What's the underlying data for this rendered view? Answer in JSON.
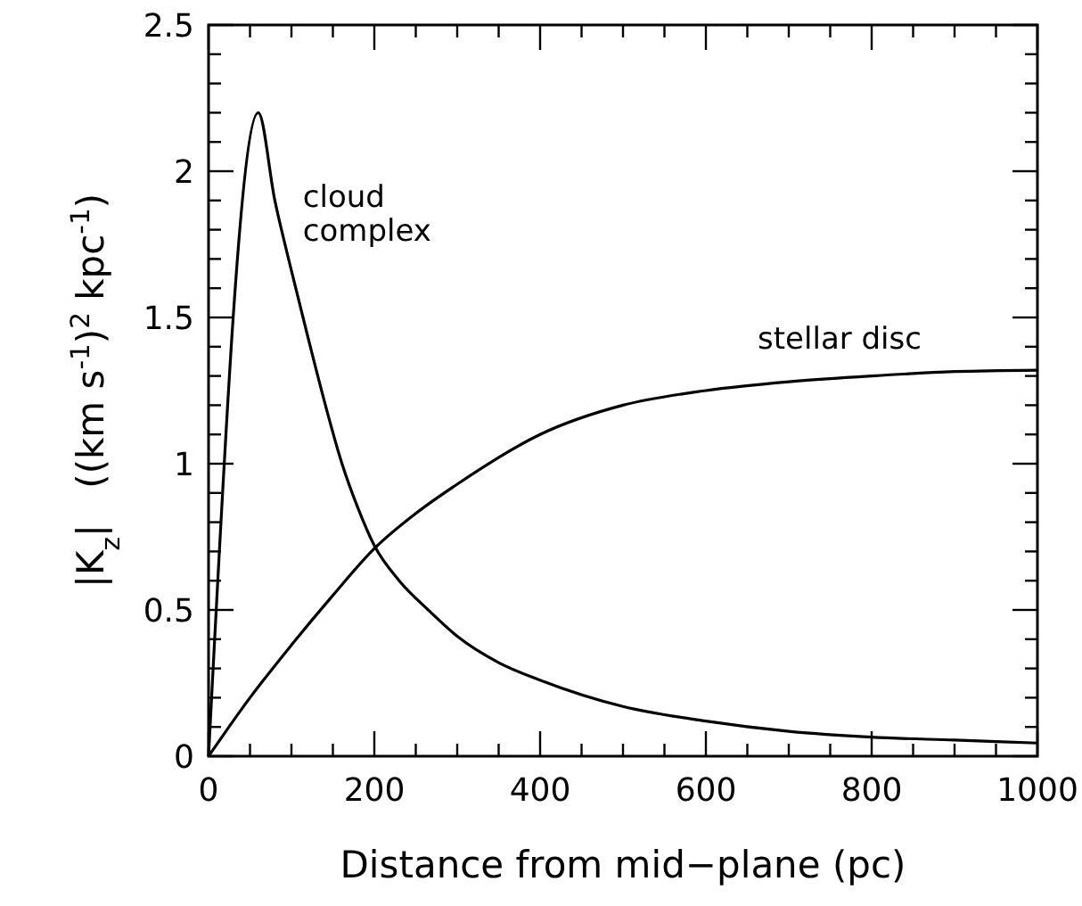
{
  "chart_data": {
    "type": "line",
    "xlabel": "Distance from mid−plane (pc)",
    "ylabel": "|K$_{z}$|   ((km s$^{-1}$)$^{2}$ kpc$^{-1}$)",
    "xlim": [
      0,
      1000
    ],
    "ylim": [
      0,
      2.5
    ],
    "xticks": [
      0,
      {
        "value": 50,
        "label": null
      },
      {
        "value": 100,
        "label": null
      },
      {
        "value": 150,
        "label": null
      },
      200,
      {
        "value": 250,
        "label": null
      },
      {
        "value": 300,
        "label": null
      },
      {
        "value": 350,
        "label": null
      },
      400,
      {
        "value": 450,
        "label": null
      },
      {
        "value": 500,
        "label": null
      },
      {
        "value": 550,
        "label": null
      },
      600,
      {
        "value": 650,
        "label": null
      },
      {
        "value": 700,
        "label": null
      },
      {
        "value": 750,
        "label": null
      },
      800,
      {
        "value": 850,
        "label": null
      },
      {
        "value": 900,
        "label": null
      },
      {
        "value": 950,
        "label": null
      },
      1000
    ],
    "yticks": [
      0,
      {
        "value": 0.1,
        "label": null
      },
      {
        "value": 0.2,
        "label": null
      },
      {
        "value": 0.3,
        "label": null
      },
      {
        "value": 0.4,
        "label": null
      },
      0.5,
      {
        "value": 0.6,
        "label": null
      },
      {
        "value": 0.7,
        "label": null
      },
      {
        "value": 0.8,
        "label": null
      },
      {
        "value": 0.9,
        "label": null
      },
      1,
      {
        "value": 1.1,
        "label": null
      },
      {
        "value": 1.2,
        "label": null
      },
      {
        "value": 1.3,
        "label": null
      },
      {
        "value": 1.4,
        "label": null
      },
      1.5,
      {
        "value": 1.6,
        "label": null
      },
      {
        "value": 1.7,
        "label": null
      },
      {
        "value": 1.8,
        "label": null
      },
      {
        "value": 1.9,
        "label": null
      },
      2,
      {
        "value": 2.1,
        "label": null
      },
      {
        "value": 2.2,
        "label": null
      },
      {
        "value": 2.3,
        "label": null
      },
      {
        "value": 2.4,
        "label": null
      },
      2.5
    ],
    "grid": false,
    "marker": "none",
    "line_style": "solid",
    "series": [
      {
        "name": "cloud complex",
        "color": "#000000",
        "x": [
          0,
          60,
          80,
          100,
          121,
          141,
          161,
          180,
          200,
          230,
          265,
          300,
          350,
          400,
          500,
          600,
          700,
          800,
          900,
          1000
        ],
        "values": [
          0,
          2.2,
          1.9,
          1.66,
          1.42,
          1.2,
          1.0,
          0.85,
          0.72,
          0.6,
          0.5,
          0.41,
          0.32,
          0.26,
          0.17,
          0.12,
          0.085,
          0.065,
          0.055,
          0.045
        ]
      },
      {
        "name": "stellar disc",
        "color": "#000000",
        "x": [
          0,
          50,
          100,
          150,
          200,
          250,
          300,
          400,
          500,
          600,
          700,
          800,
          900,
          1000
        ],
        "values": [
          0,
          0.2,
          0.38,
          0.55,
          0.71,
          0.83,
          0.93,
          1.1,
          1.2,
          1.25,
          1.28,
          1.3,
          1.315,
          1.32
        ]
      }
    ]
  }
}
